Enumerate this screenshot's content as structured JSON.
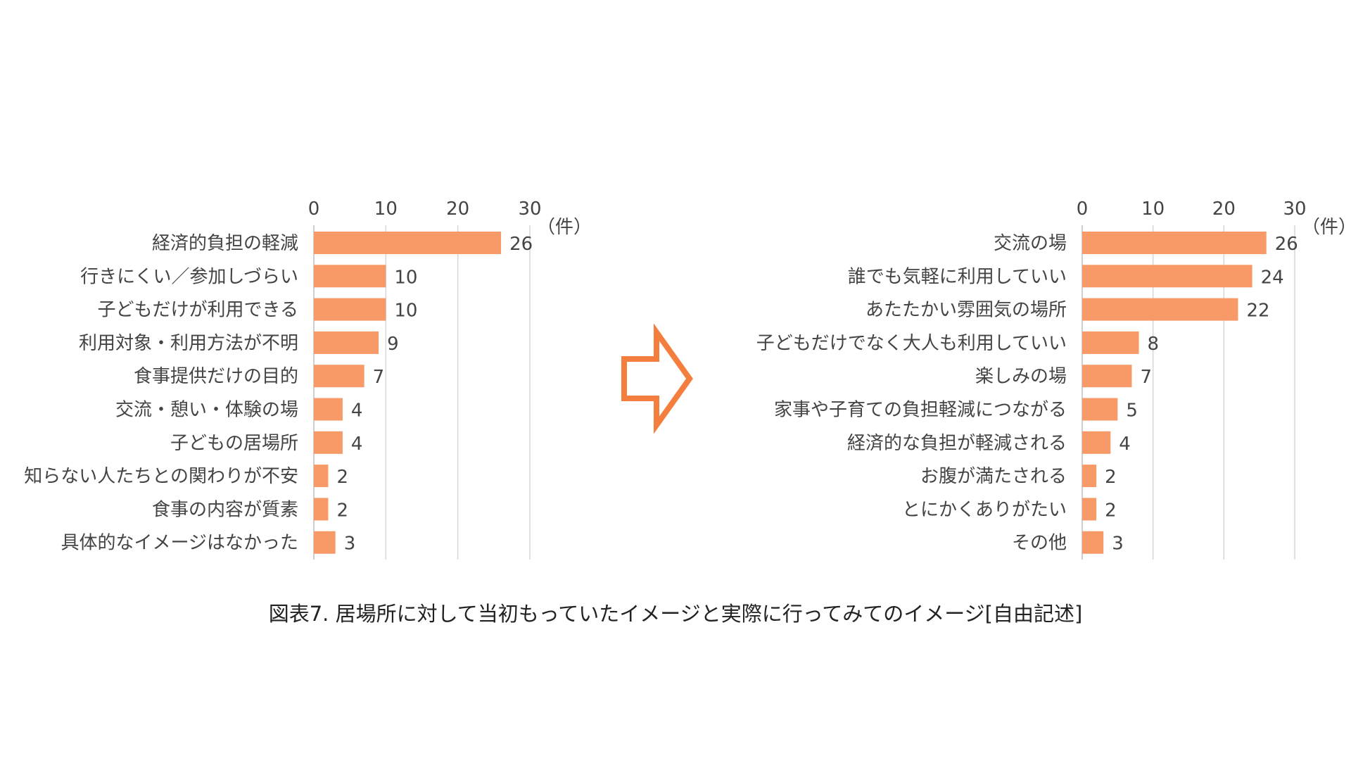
{
  "chart_data": [
    {
      "type": "bar",
      "orientation": "horizontal",
      "unit": "（件）",
      "xlim": [
        0,
        30
      ],
      "ticks": [
        0,
        10,
        20,
        30
      ],
      "grid": true,
      "categories": [
        "経済的負担の軽減",
        "行きにくい／参加しづらい",
        "子どもだけが利用できる",
        "利用対象・利用方法が不明",
        "食事提供だけの目的",
        "交流・憩い・体験の場",
        "子どもの居場所",
        "知らない人たちとの関わりが不安",
        "食事の内容が質素",
        "具体的なイメージはなかった"
      ],
      "values": [
        26,
        10,
        10,
        9,
        7,
        4,
        4,
        2,
        2,
        3
      ],
      "bar_color": "#f79a68"
    },
    {
      "type": "bar",
      "orientation": "horizontal",
      "unit": "（件）",
      "xlim": [
        0,
        30
      ],
      "ticks": [
        0,
        10,
        20,
        30
      ],
      "grid": true,
      "categories": [
        "交流の場",
        "誰でも気軽に利用していい",
        "あたたかい雰囲気の場所",
        "子どもだけでなく大人も利用していい",
        "楽しみの場",
        "家事や子育ての負担軽減につながる",
        "経済的な負担が軽減される",
        "お腹が満たされる",
        "とにかくありがたい",
        "その他"
      ],
      "values": [
        26,
        24,
        22,
        8,
        7,
        5,
        4,
        2,
        2,
        3
      ],
      "bar_color": "#f79a68"
    }
  ],
  "arrow": {
    "icon": "right-arrow-icon",
    "color": "#f47e3d"
  },
  "caption": "図表7. 居場所に対して当初もっていたイメージと実際に行ってみてのイメージ[自由記述]"
}
